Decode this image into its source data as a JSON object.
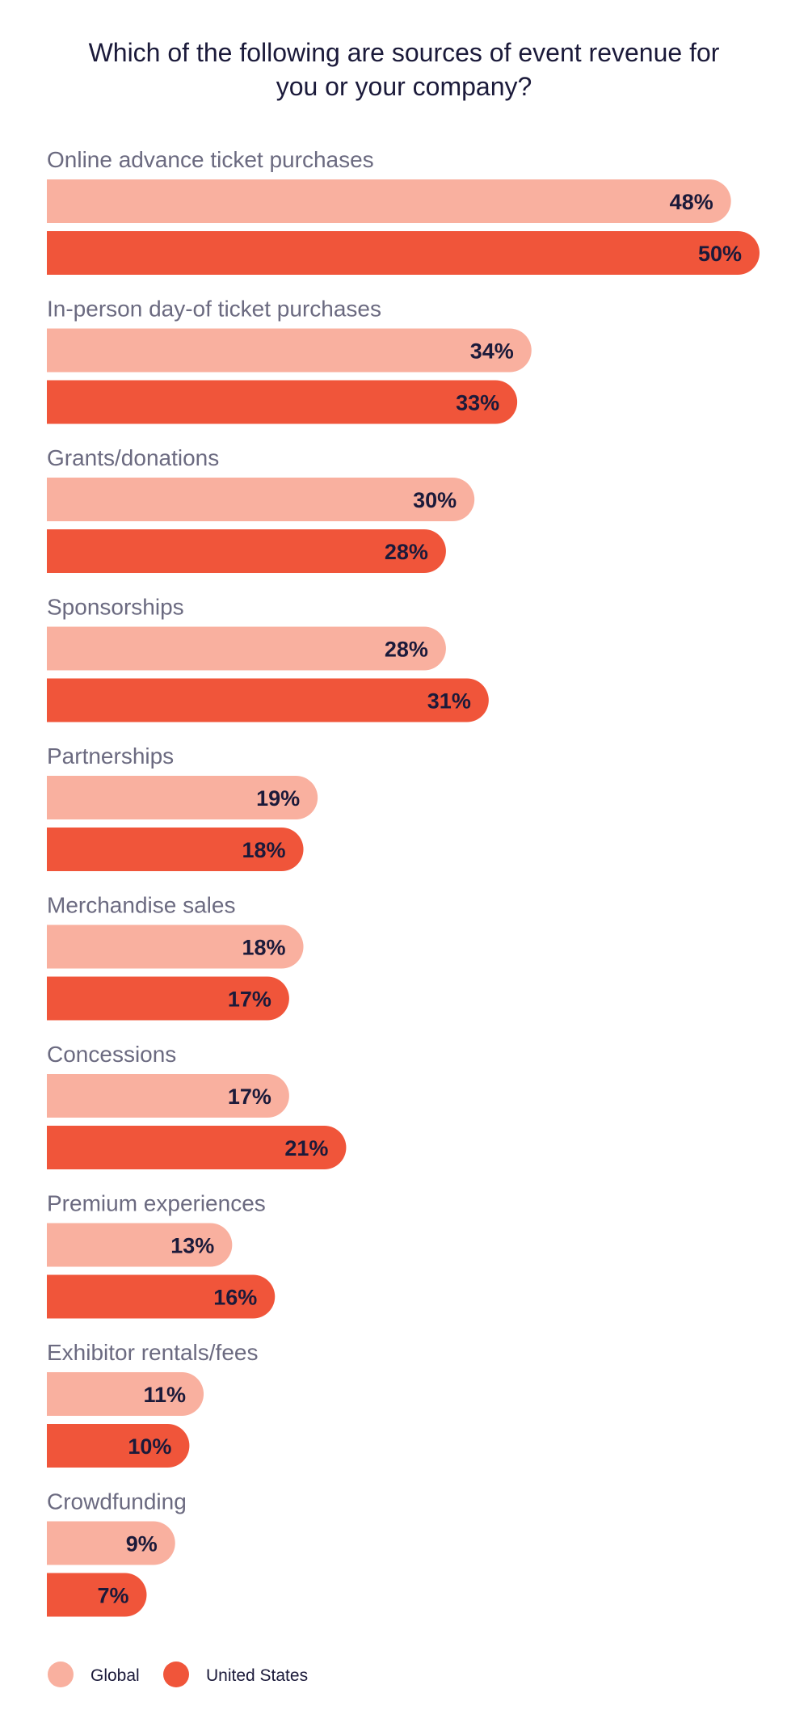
{
  "chart_data": {
    "type": "bar",
    "orientation": "horizontal",
    "title": "Which of the following are sources of event revenue for you or your company?",
    "title_lines": [
      "Which of the following are sources of event revenue for",
      "you or your company?"
    ],
    "categories": [
      "Online advance ticket purchases",
      "In-person day-of ticket purchases",
      "Grants/donations",
      "Sponsorships",
      "Partnerships",
      "Merchandise sales",
      "Concessions",
      "Premium experiences",
      "Exhibitor rentals/fees",
      "Crowdfunding"
    ],
    "series": [
      {
        "name": "Global",
        "color": "#f9b09f",
        "values": [
          48,
          34,
          30,
          28,
          19,
          18,
          17,
          13,
          11,
          9
        ],
        "labels": [
          "48%",
          "34%",
          "30%",
          "28%",
          "19%",
          "18%",
          "17%",
          "13%",
          "11%",
          "9%"
        ]
      },
      {
        "name": "United States",
        "color": "#f0553a",
        "values": [
          50,
          33,
          28,
          31,
          18,
          17,
          21,
          16,
          10,
          7
        ],
        "labels": [
          "50%",
          "33%",
          "28%",
          "31%",
          "18%",
          "17%",
          "21%",
          "16%",
          "10%",
          "7%"
        ]
      }
    ],
    "value_unit": "%",
    "xlim": [
      0,
      50
    ],
    "grid": false,
    "legend": "bottom-left",
    "xlabel": "",
    "ylabel": ""
  }
}
